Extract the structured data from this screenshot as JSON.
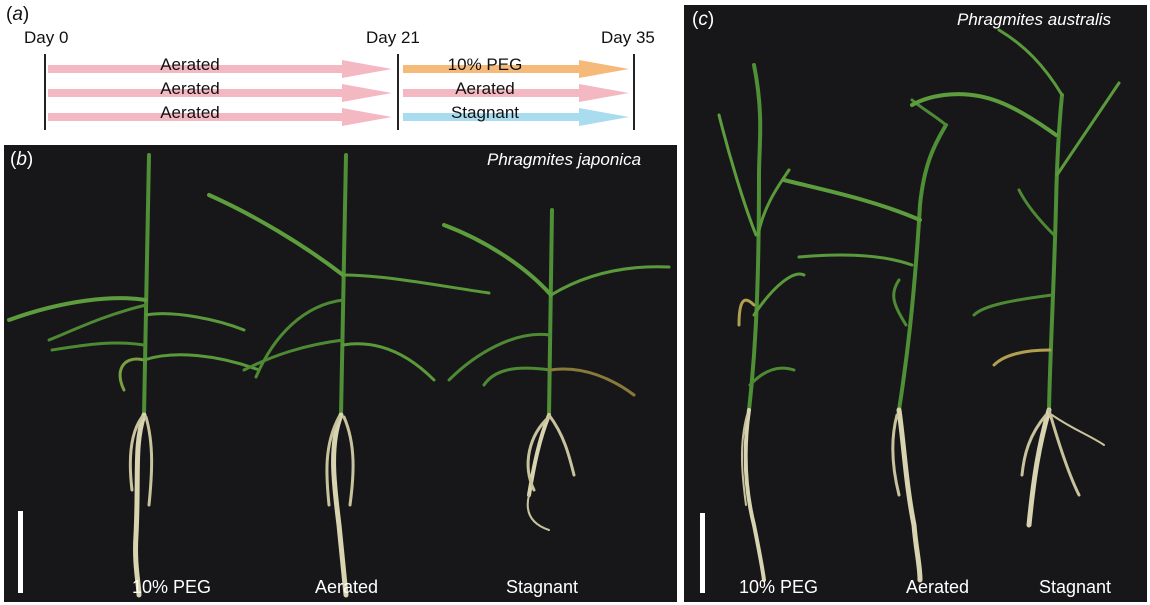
{
  "panel_a": {
    "letter_open": "(",
    "letter": "a",
    "letter_close": ")",
    "days": [
      "Day 0",
      "Day 21",
      "Day 35"
    ],
    "rows": [
      {
        "phase1": "Aerated",
        "phase2": "10% PEG",
        "phase2_color": "#f5b97a"
      },
      {
        "phase1": "Aerated",
        "phase2": "Aerated",
        "phase2_color": "#f4b8c2"
      },
      {
        "phase1": "Aerated",
        "phase2": "Stagnant",
        "phase2_color": "#a9dcef"
      }
    ],
    "phase1_color": "#f4b8c2"
  },
  "panel_b": {
    "letter_open": "(",
    "letter": "b",
    "letter_close": ")",
    "species": "Phragmites japonica",
    "labels": [
      "10% PEG",
      "Aerated",
      "Stagnant"
    ]
  },
  "panel_c": {
    "letter_open": "(",
    "letter": "c",
    "letter_close": ")",
    "species": "Phragmites australis",
    "labels": [
      "10% PEG",
      "Aerated",
      "Stagnant"
    ]
  },
  "colors": {
    "background_photo": "#17171a",
    "leaf": "#5a9a3a",
    "root": "#d8d3b0"
  }
}
